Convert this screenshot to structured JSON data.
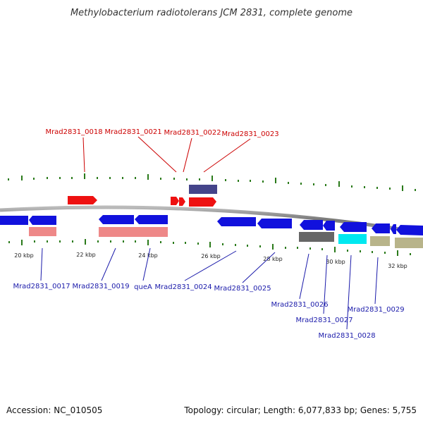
{
  "title": "Methylobacterium radiotolerans JCM 2831, complete genome",
  "footer": {
    "accession": "Accession: NC_010505",
    "topology": "Topology: circular; Length: 6,077,833 bp; Genes: 5,755"
  },
  "scale_labels": [
    "20 kbp",
    "22 kbp",
    "24 kbp",
    "26 kbp",
    "28 kbp",
    "30 kbp",
    "32 kbp"
  ],
  "top_labels": [
    "Mrad2831_0018",
    "Mrad2831_0021",
    "Mrad2831_0022",
    "Mrad2831_0023"
  ],
  "bottom_labels": [
    "Mrad2831_0017",
    "Mrad2831_0019",
    "queA",
    "Mrad2831_0024",
    "Mrad2831_0025",
    "Mrad2831_0026",
    "Mrad2831_0027",
    "Mrad2831_0028",
    "Mrad2831_0029"
  ],
  "colors": {
    "backbone": "#888888",
    "tick": "#2a7a1a",
    "red_feature": "#ee1111",
    "blue_feature": "#1111dd",
    "pink_feature": "#ee8888",
    "navy_feature": "#44448a",
    "gray_feature": "#666666",
    "cyan_feature": "#00e8f0",
    "khaki_feature": "#b8b48a",
    "top_label_color": "#cc0000",
    "bottom_label_color": "#1a1aaa"
  }
}
